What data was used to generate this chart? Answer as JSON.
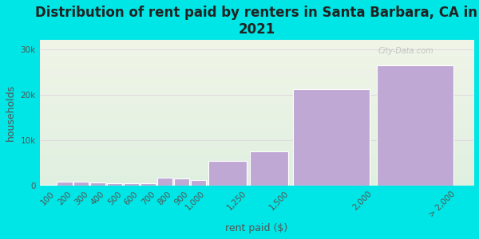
{
  "title": "Distribution of rent paid by renters in Santa Barbara, CA in\n2021",
  "xlabel": "rent paid ($)",
  "ylabel": "households",
  "background_color": "#00e5e5",
  "plot_bg_gradient_top": "#f0f5e8",
  "plot_bg_gradient_bottom": "#e0f0e0",
  "bar_color": "#c0a8d5",
  "bar_edge_color": "#ffffff",
  "categories": [
    "100",
    "200",
    "300",
    "400",
    "500",
    "600",
    "700",
    "800",
    "900",
    "1,000",
    "1,250",
    "1,500",
    "2,000",
    "> 2,000"
  ],
  "values": [
    200,
    900,
    950,
    700,
    650,
    500,
    500,
    1700,
    1600,
    1300,
    5500,
    7500,
    21200,
    26500
  ],
  "bin_left": [
    0,
    100,
    200,
    300,
    400,
    500,
    600,
    700,
    800,
    900,
    1000,
    1250,
    1500,
    2000
  ],
  "bin_right": [
    100,
    200,
    300,
    400,
    500,
    600,
    700,
    800,
    900,
    1000,
    1250,
    1500,
    2000,
    2500
  ],
  "tick_positions": [
    100,
    200,
    300,
    400,
    500,
    600,
    700,
    800,
    900,
    1000,
    1250,
    1500,
    2000,
    2500
  ],
  "yticks": [
    0,
    10000,
    20000,
    30000
  ],
  "ytick_labels": [
    "0",
    "10k",
    "20k",
    "30k"
  ],
  "ylim": [
    0,
    32000
  ],
  "xlim": [
    0,
    2600
  ],
  "watermark": "City-Data.com",
  "title_fontsize": 12,
  "axis_label_fontsize": 9,
  "tick_fontsize": 7.5
}
